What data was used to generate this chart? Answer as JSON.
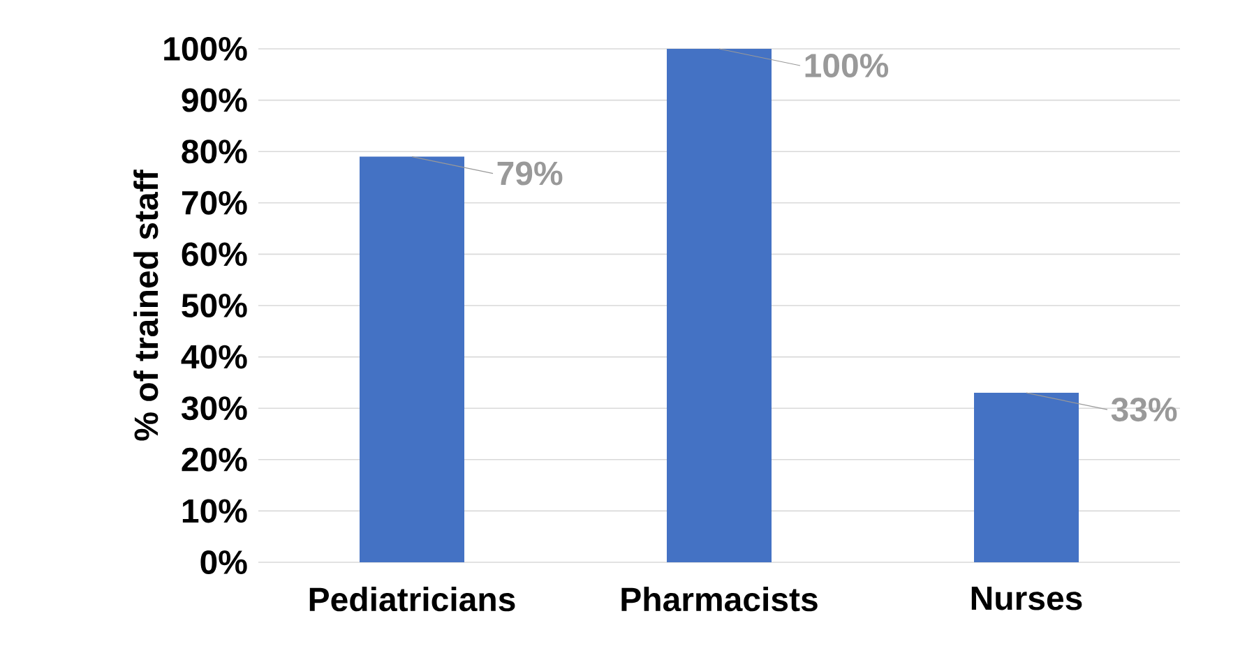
{
  "chart_data": {
    "type": "bar",
    "ylabel": "% of trained staff",
    "categories": [
      "Pediatricians",
      "Pharmacists",
      "Nurses"
    ],
    "values": [
      79,
      100,
      33
    ],
    "color": "#4472c4",
    "value_labels": [
      "79%",
      "100%",
      "33%"
    ],
    "ylim": [
      0,
      100
    ],
    "yticks": [
      {
        "value": 0,
        "label": "0%"
      },
      {
        "value": 10,
        "label": "10%"
      },
      {
        "value": 20,
        "label": "20%"
      },
      {
        "value": 30,
        "label": "30%"
      },
      {
        "value": 40,
        "label": "40%"
      },
      {
        "value": 50,
        "label": "50%"
      },
      {
        "value": 60,
        "label": "60%"
      },
      {
        "value": 70,
        "label": "70%"
      },
      {
        "value": 80,
        "label": "80%"
      },
      {
        "value": 90,
        "label": "90%"
      },
      {
        "value": 100,
        "label": "100%"
      }
    ],
    "grid": "y"
  }
}
